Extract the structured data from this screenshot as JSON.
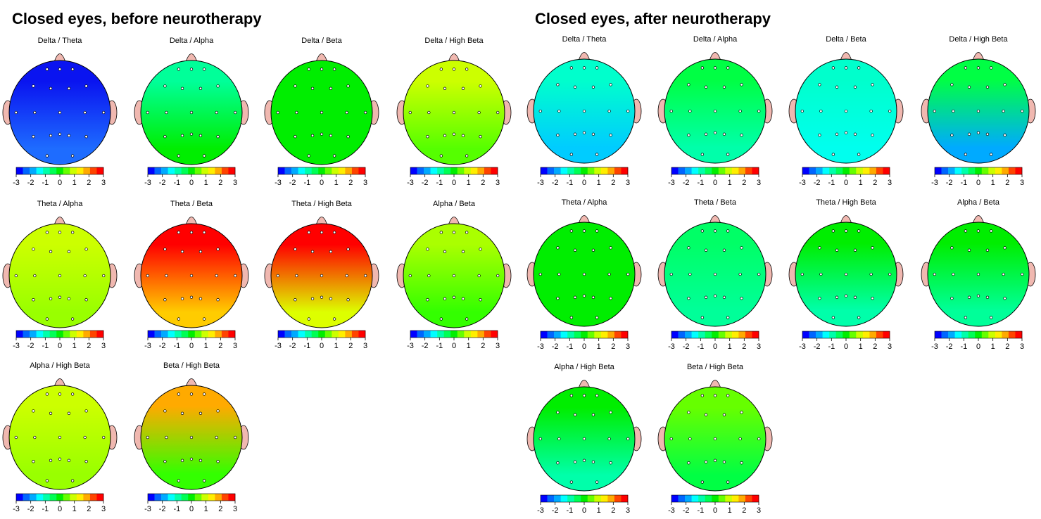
{
  "panels": [
    {
      "title": "Closed eyes, before neurotherapy",
      "maps": [
        {
          "label": "Delta / Theta",
          "colors": [
            "#0a14f0",
            "#1e6cff"
          ]
        },
        {
          "label": "Delta / Alpha",
          "colors": [
            "#00ff99",
            "#00ee00"
          ]
        },
        {
          "label": "Delta / Beta",
          "colors": [
            "#00ee00",
            "#00ee00"
          ]
        },
        {
          "label": "Delta / High Beta",
          "colors": [
            "#ccff00",
            "#55ff00"
          ]
        },
        {
          "label": "Theta / Alpha",
          "colors": [
            "#ccff00",
            "#99ff00"
          ]
        },
        {
          "label": "Theta / Beta",
          "colors": [
            "#ff0000",
            "#ffcc00"
          ]
        },
        {
          "label": "Theta / High Beta",
          "colors": [
            "#ff0000",
            "#ddff00"
          ]
        },
        {
          "label": "Alpha / Beta",
          "colors": [
            "#aaff00",
            "#33ff00"
          ]
        },
        {
          "label": "Alpha / High Beta",
          "colors": [
            "#ccff00",
            "#99ff00"
          ]
        },
        {
          "label": "Beta / High Beta",
          "colors": [
            "#ffaa00",
            "#33ff00"
          ]
        }
      ]
    },
    {
      "title": "Closed eyes, after neurotherapy",
      "maps": [
        {
          "label": "Delta / Theta",
          "colors": [
            "#00ffcc",
            "#00ccff"
          ]
        },
        {
          "label": "Delta / Alpha",
          "colors": [
            "#00ff44",
            "#00ffaa"
          ]
        },
        {
          "label": "Delta / Beta",
          "colors": [
            "#00ffcc",
            "#00ffee"
          ]
        },
        {
          "label": "Delta / High Beta",
          "colors": [
            "#00ff44",
            "#00aaff"
          ]
        },
        {
          "label": "Theta / Alpha",
          "colors": [
            "#00ee00",
            "#00ee00"
          ]
        },
        {
          "label": "Theta / Beta",
          "colors": [
            "#00ff66",
            "#00ff99"
          ]
        },
        {
          "label": "Theta / High Beta",
          "colors": [
            "#00ee00",
            "#00ffaa"
          ]
        },
        {
          "label": "Alpha / Beta",
          "colors": [
            "#00ee00",
            "#00ff99"
          ]
        },
        {
          "label": "Alpha / High Beta",
          "colors": [
            "#00ee00",
            "#00ffaa"
          ]
        },
        {
          "label": "Beta / High Beta",
          "colors": [
            "#66ff00",
            "#00ff44"
          ]
        }
      ]
    }
  ],
  "colorbar_ticks": [
    -3,
    -2,
    -1,
    0,
    1,
    2,
    3
  ],
  "colorbar_colors": [
    "#0000ff",
    "#0066ff",
    "#00aaff",
    "#00ffff",
    "#00ffaa",
    "#00ff55",
    "#00ee00",
    "#66ff00",
    "#ccff00",
    "#ffee00",
    "#ffaa00",
    "#ff4400",
    "#ff0000"
  ]
}
